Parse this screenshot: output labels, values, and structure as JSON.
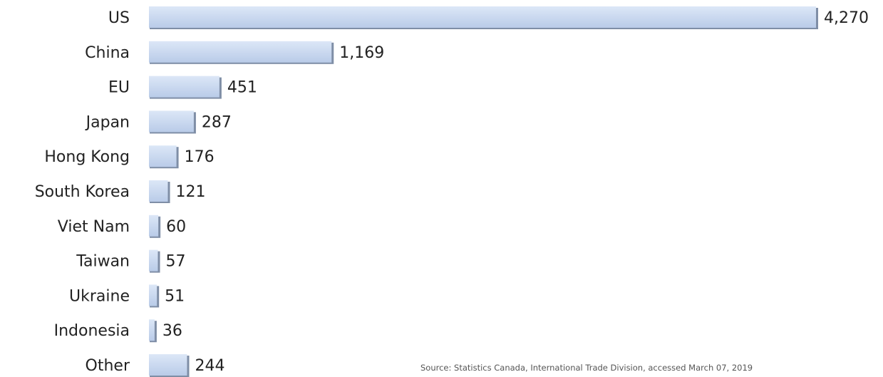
{
  "chart_data": {
    "type": "bar",
    "orientation": "horizontal",
    "categories": [
      "US",
      "China",
      "EU",
      "Japan",
      "Hong Kong",
      "South Korea",
      "Viet Nam",
      "Taiwan",
      "Ukraine",
      "Indonesia",
      "Other"
    ],
    "values": [
      4270,
      1169,
      451,
      287,
      176,
      121,
      60,
      57,
      51,
      36,
      244
    ],
    "value_labels": [
      "4,270",
      "1,169",
      "451",
      "287",
      "176",
      "121",
      "60",
      "57",
      "51",
      "36",
      "244"
    ],
    "xlim": [
      0,
      4270
    ],
    "grid": false,
    "legend": "none",
    "colors": {
      "bar": "#c5d6ef",
      "bar_shadow": "#7f8ea6",
      "text": "#222222"
    }
  },
  "source": "Source: Statistics Canada, International Trade Division, accessed March 07, 2019"
}
